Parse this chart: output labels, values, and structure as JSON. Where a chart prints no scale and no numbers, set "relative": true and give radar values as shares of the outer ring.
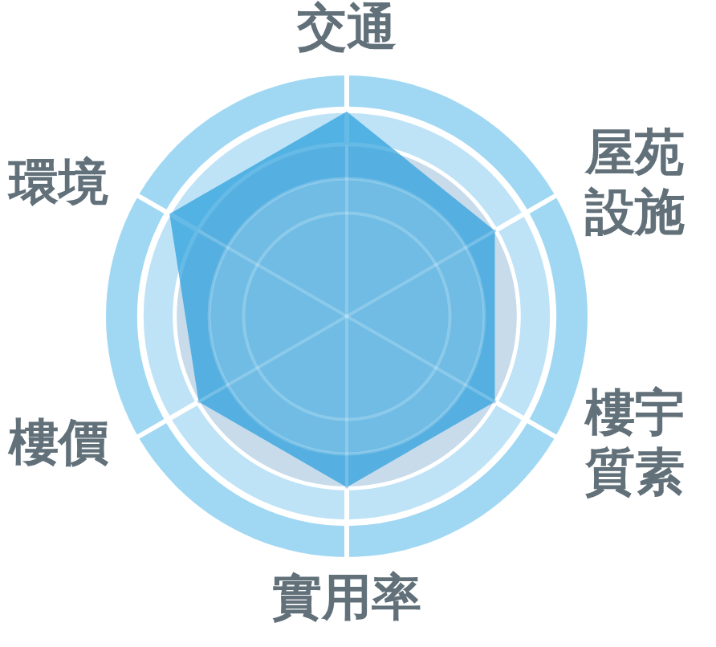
{
  "chart_data": {
    "type": "radar",
    "categories": [
      "交通",
      "屋苑設施",
      "樓宇質素",
      "實用率",
      "樓價",
      "環境"
    ],
    "relative": true,
    "series": [
      {
        "color": "#2a9fdc",
        "values": [
          0.85,
          0.71,
          0.71,
          0.71,
          0.71,
          0.85
        ]
      }
    ],
    "grid": true,
    "marker": "none"
  }
}
